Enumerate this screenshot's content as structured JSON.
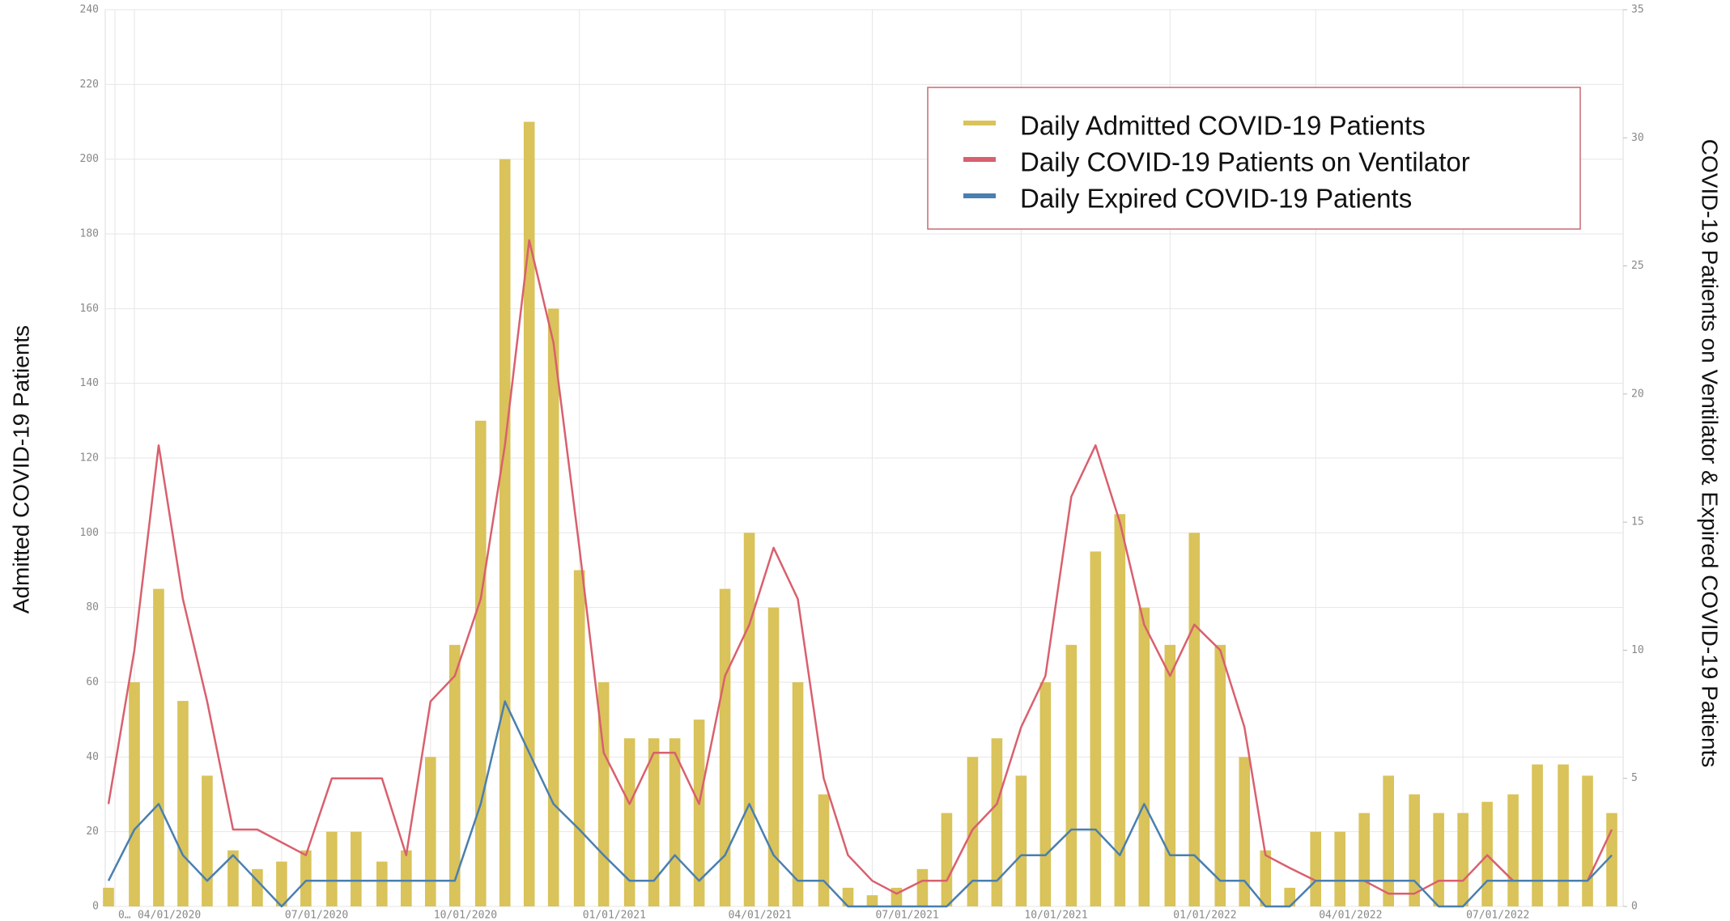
{
  "chart_data": {
    "type": "bar-line",
    "x": [
      "03/16/2020",
      "04/01/2020",
      "04/16/2020",
      "05/01/2020",
      "05/16/2020",
      "06/01/2020",
      "06/16/2020",
      "07/01/2020",
      "07/16/2020",
      "08/01/2020",
      "08/16/2020",
      "09/01/2020",
      "09/16/2020",
      "10/01/2020",
      "10/16/2020",
      "11/01/2020",
      "11/16/2020",
      "12/01/2020",
      "12/16/2020",
      "01/01/2021",
      "01/16/2021",
      "02/01/2021",
      "02/16/2021",
      "03/01/2021",
      "03/16/2021",
      "04/01/2021",
      "04/16/2021",
      "05/01/2021",
      "05/16/2021",
      "06/01/2021",
      "06/16/2021",
      "07/01/2021",
      "07/16/2021",
      "08/01/2021",
      "08/16/2021",
      "09/01/2021",
      "09/16/2021",
      "10/01/2021",
      "10/16/2021",
      "11/01/2021",
      "11/16/2021",
      "12/01/2021",
      "12/16/2021",
      "01/01/2022",
      "01/16/2022",
      "02/01/2022",
      "02/16/2022",
      "03/01/2022",
      "03/16/2022",
      "04/01/2022",
      "04/16/2022",
      "05/01/2022",
      "05/16/2022",
      "06/01/2022",
      "06/16/2022",
      "07/01/2022",
      "07/16/2022",
      "08/01/2022",
      "08/16/2022",
      "09/01/2022",
      "09/16/2022",
      "10/01/2022"
    ],
    "series": [
      {
        "name": "Daily Admitted COVID-19 Patients",
        "color": "#d9c35a",
        "kind": "bar",
        "axis": "y",
        "values": [
          5,
          60,
          85,
          55,
          35,
          15,
          10,
          12,
          15,
          20,
          20,
          12,
          15,
          40,
          70,
          130,
          200,
          210,
          160,
          90,
          60,
          45,
          45,
          45,
          50,
          85,
          100,
          80,
          60,
          30,
          5,
          3,
          5,
          10,
          25,
          40,
          45,
          35,
          60,
          70,
          95,
          105,
          80,
          70,
          100,
          70,
          40,
          15,
          5,
          20,
          20,
          25,
          35,
          30,
          25,
          25,
          28,
          30,
          38,
          38,
          35,
          25
        ]
      },
      {
        "name": "Daily COVID-19 Patients on Ventilator",
        "color": "#d9606e",
        "kind": "line",
        "axis": "y2",
        "values": [
          4,
          10,
          18,
          12,
          8,
          3,
          3,
          2.5,
          2,
          5,
          5,
          5,
          2,
          8,
          9,
          12,
          18,
          26,
          22,
          14,
          6,
          4,
          6,
          6,
          4,
          9,
          11,
          14,
          12,
          5,
          2,
          1,
          0.5,
          1,
          1,
          3,
          4,
          7,
          9,
          16,
          18,
          15,
          11,
          9,
          11,
          10,
          7,
          2,
          1.5,
          1,
          1,
          1,
          0.5,
          0.5,
          1,
          1,
          2,
          1,
          1,
          1,
          1,
          3
        ]
      },
      {
        "name": "Daily Expired COVID-19 Patients",
        "color": "#4a7fb0",
        "kind": "line",
        "axis": "y2",
        "values": [
          1,
          3,
          4,
          2,
          1,
          2,
          1,
          0,
          1,
          1,
          1,
          1,
          1,
          1,
          1,
          4,
          8,
          6,
          4,
          3,
          2,
          1,
          1,
          2,
          1,
          2,
          4,
          2,
          1,
          1,
          0,
          0,
          0,
          0,
          0,
          1,
          1,
          2,
          2,
          3,
          3,
          2,
          4,
          2,
          2,
          1,
          1,
          0,
          0,
          1,
          1,
          1,
          1,
          1,
          0,
          0,
          1,
          1,
          1,
          1,
          1,
          2
        ]
      }
    ],
    "y_label": "Admitted COVID-19 Patients",
    "y2_label": "COVID-19 Patients on Ventilator & Expired COVID-19 Patients",
    "xlim": [
      "03/14/2020",
      "10/08/2022"
    ],
    "xticks": [
      {
        "value": "03/20/2020",
        "label": "0…"
      },
      "04/01/2020",
      "07/01/2020",
      "10/01/2020",
      "01/01/2021",
      "04/01/2021",
      "07/01/2021",
      "10/01/2021",
      "01/01/2022",
      "04/01/2022",
      "07/01/2022"
    ],
    "ylim": [
      0,
      240
    ],
    "yticks": [
      0,
      20,
      40,
      60,
      80,
      100,
      120,
      140,
      160,
      180,
      200,
      220,
      240
    ],
    "y2lim": [
      0,
      35
    ],
    "y2ticks": [
      0,
      5,
      10,
      15,
      20,
      25,
      30,
      35
    ],
    "grid": true,
    "legend": "top-right"
  }
}
